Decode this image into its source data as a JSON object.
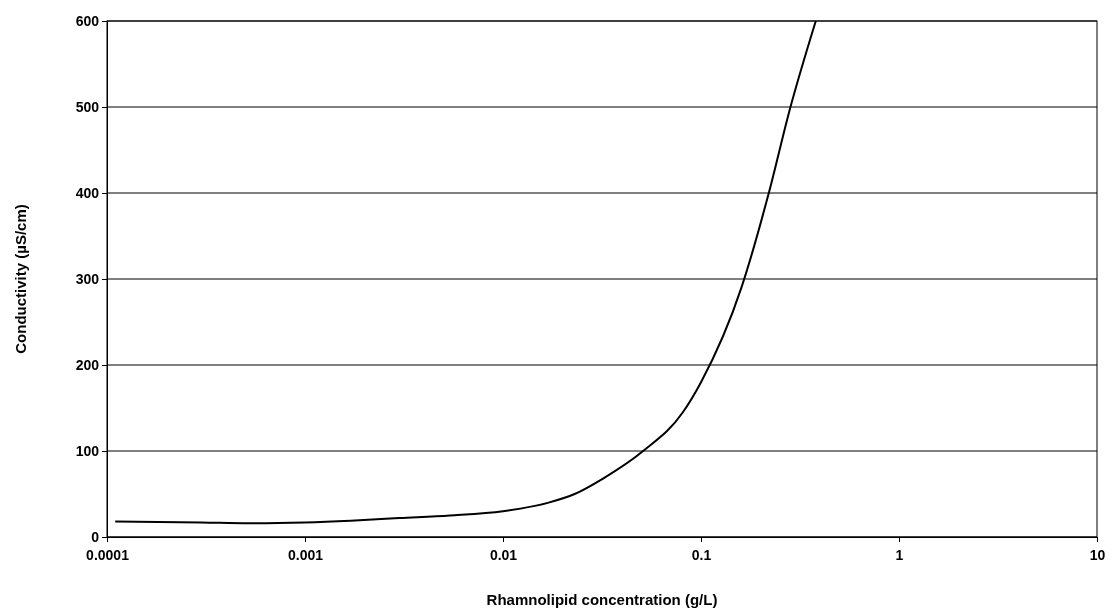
{
  "chart_data": {
    "type": "line",
    "xlabel": "Rhamnolipid concentration (g/L)",
    "ylabel": "Conductivity (µS/cm)",
    "log": "x",
    "grid": "y",
    "marker": "none",
    "line_style": "solid",
    "xlim": [
      0.0001,
      10
    ],
    "xticks": [
      {
        "value": 0.0001,
        "label": "0.0001"
      },
      {
        "value": 0.001,
        "label": "0.001"
      },
      {
        "value": 0.01,
        "label": "0.01"
      },
      {
        "value": 0.1,
        "label": "0.1"
      },
      {
        "value": 1,
        "label": "1"
      },
      {
        "value": 10,
        "label": "10"
      }
    ],
    "ylim": [
      0,
      600
    ],
    "yticks": [
      0,
      100,
      200,
      300,
      400,
      500,
      600
    ],
    "series": [
      {
        "color": "#000000",
        "x": [
          0.00011,
          0.0003,
          0.00052,
          0.001,
          0.0017,
          0.003,
          0.0054,
          0.01,
          0.017,
          0.023,
          0.032,
          0.051,
          0.081,
          0.1,
          0.16,
          0.22,
          0.28,
          0.38
        ],
        "values": [
          18,
          17,
          16,
          17,
          19,
          22,
          25,
          30,
          40,
          50,
          68,
          100,
          145,
          180,
          290,
          400,
          496,
          600
        ]
      }
    ]
  }
}
